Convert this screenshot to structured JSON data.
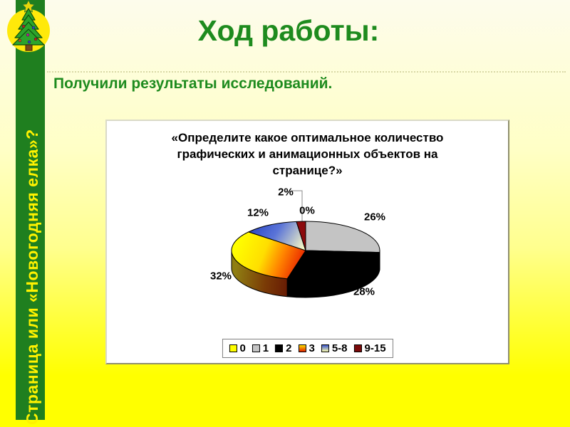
{
  "header": {
    "title": "Ход работы:",
    "subtitle": "Получили результаты исследований."
  },
  "sidebar": {
    "vertical_text": "Страница или «Новогодняя елка»?",
    "bar_color": "#1F7F1F",
    "text_color": "#FFF200"
  },
  "icons": {
    "logo": "christmas-tree-in-yellow-circle"
  },
  "accent_colors": {
    "heading_green": "#1E8B1E",
    "background_top": "#FDFCEC",
    "background_bottom": "#FFFF00"
  },
  "chart_data": {
    "type": "pie",
    "style": "3d",
    "title": "«Определите какое оптимальное количество графических и анимационных объектов на странице?»",
    "legend_position": "bottom",
    "direction": "clockwise",
    "start_angle_deg": 0,
    "slices": [
      {
        "name": "0",
        "value": 0,
        "label": "0%",
        "fill": "#FFFF00",
        "wall": "#9A9A00",
        "swatch": [
          "#FFFF00"
        ]
      },
      {
        "name": "1",
        "value": 26,
        "label": "26%",
        "fill": "#C4C4C4",
        "wall": "#707070",
        "swatch": [
          "#C4C4C4"
        ]
      },
      {
        "name": "2",
        "value": 28,
        "label": "28%",
        "fill": "#000000",
        "wall": "#000000",
        "swatch": [
          "#000000"
        ]
      },
      {
        "name": "3",
        "value": 32,
        "label": "32%",
        "fill": "gradient:orange",
        "wall": "gradient:orange-side",
        "swatch": [
          "#FFE000",
          "#E02000"
        ]
      },
      {
        "name": "5-8",
        "value": 12,
        "label": "12%",
        "fill": "gradient:blue",
        "wall": "#2A3C9A",
        "swatch": [
          "#3A56CC",
          "#FFFFB0"
        ]
      },
      {
        "name": "9-15",
        "value": 2,
        "label": "2%",
        "fill": "#8C0A0C",
        "wall": "#5A0606",
        "swatch": [
          "#7A0A0A"
        ]
      }
    ]
  }
}
